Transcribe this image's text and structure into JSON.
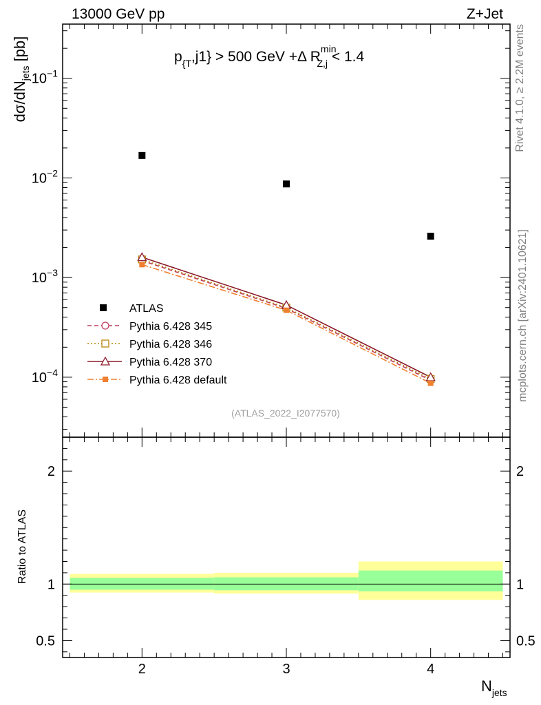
{
  "header": {
    "left": "13000 GeV pp",
    "right": "Z+Jet"
  },
  "side_labels": {
    "rivet": "Rivet 4.1.0, ≥ 2.2M events",
    "mcplots": "mcplots.cern.ch [arXiv:2401.10621]"
  },
  "chart_data": {
    "type": "scatter",
    "title": {
      "pt": "p",
      "pt_sub": "{T",
      "mid": ",j1} > 500 GeV +Δ R",
      "r_sub": "Z,j",
      "r_sup": "min",
      "end": " < 1.4"
    },
    "analysis_id": "(ATLAS_2022_I2077570)",
    "ylabel": {
      "main": "dσ/dN",
      "sub": "jets",
      "unit": " [pb]"
    },
    "xlabel": {
      "main": "N",
      "sub": "jets"
    },
    "ratio_ylabel": "Ratio to ATLAS",
    "xlim": [
      1.45,
      4.55
    ],
    "ylim": [
      2.5e-05,
      0.35
    ],
    "ylog": true,
    "ratio_ylim": [
      0.35,
      2.3
    ],
    "x_ticks": [
      "2",
      "3",
      "4"
    ],
    "y_ticks": [
      {
        "value": 0.1,
        "base": "10",
        "exp": "−1"
      },
      {
        "value": 0.01,
        "base": "10",
        "exp": "−2"
      },
      {
        "value": 0.001,
        "base": "10",
        "exp": "−3"
      },
      {
        "value": 0.0001,
        "base": "10",
        "exp": "−4"
      }
    ],
    "ratio_ticks": [
      {
        "value": 0.5,
        "label": "0.5"
      },
      {
        "value": 1,
        "label": "1"
      },
      {
        "value": 2,
        "label": "2"
      }
    ],
    "x": [
      2,
      3,
      4
    ],
    "data": {
      "name": "ATLAS",
      "color": "#000000",
      "values": [
        0.0168,
        0.0087,
        0.0026
      ]
    },
    "series": [
      {
        "name": "Pythia 6.428 345",
        "color": "#bf4060",
        "dash": "6,4",
        "marker": "circle",
        "values": [
          0.00148,
          0.00049,
          9.3e-05
        ]
      },
      {
        "name": "Pythia 6.428 346",
        "color": "#b8860b",
        "dash": "2,3",
        "marker": "square",
        "values": [
          0.00152,
          0.0005,
          9.6e-05
        ]
      },
      {
        "name": "Pythia 6.428 370",
        "color": "#8b1a2b",
        "dash": "",
        "marker": "triangle",
        "values": [
          0.0016,
          0.00053,
          0.0001
        ]
      },
      {
        "name": "Pythia 6.428 default",
        "color": "#f08030",
        "dash": "9,3,2,3",
        "marker": "filled-square",
        "values": [
          0.00135,
          0.00047,
          8.7e-05
        ]
      }
    ],
    "uncertainty_bands": [
      {
        "x_range": [
          1.5,
          2.5
        ],
        "inner": [
          0.95,
          1.055
        ],
        "outer": [
          0.925,
          1.09
        ]
      },
      {
        "x_range": [
          2.5,
          3.5
        ],
        "inner": [
          0.945,
          1.06
        ],
        "outer": [
          0.915,
          1.1
        ]
      },
      {
        "x_range": [
          3.5,
          4.5
        ],
        "inner": [
          0.935,
          1.12
        ],
        "outer": [
          0.86,
          1.2
        ]
      }
    ],
    "band_colors": {
      "inner": "#99ff99",
      "outer": "#ffff99"
    }
  }
}
